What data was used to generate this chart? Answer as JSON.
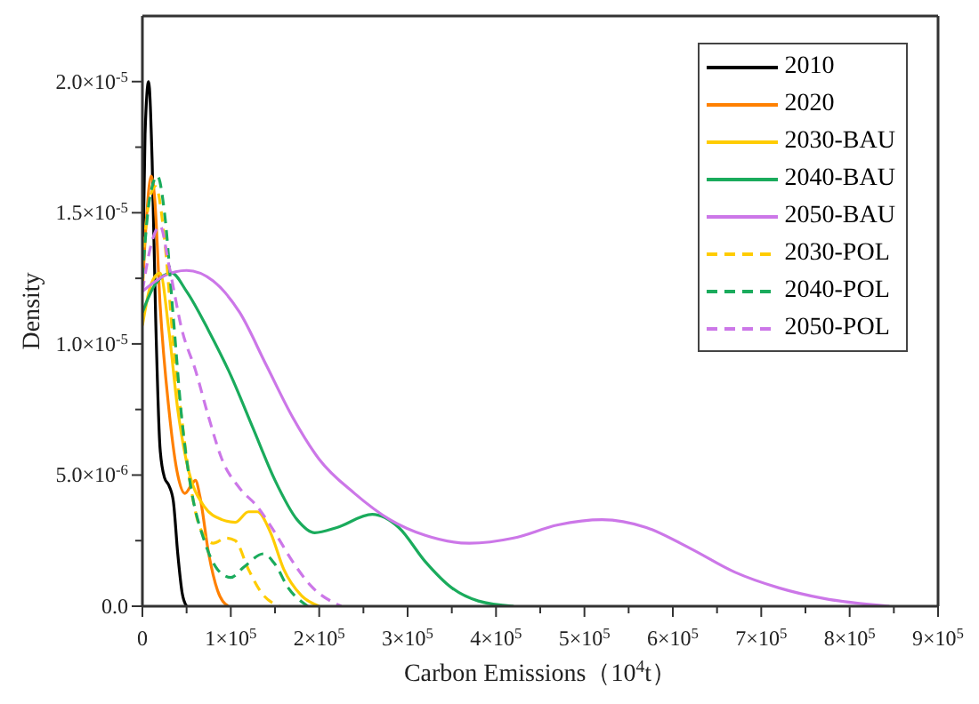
{
  "chart_data": {
    "type": "line",
    "xlabel": "Carbon Emissions（10$^{4}$t）",
    "ylabel": "Density",
    "legend": "top right",
    "marker": "none",
    "xlim": [
      0,
      900000
    ],
    "ylim": [
      0,
      2.25e-05
    ],
    "xticks": [
      0,
      {
        "value": 50000,
        "label": null
      },
      {
        "value": 100000,
        "label": "1×10$^{5}$"
      },
      {
        "value": 150000,
        "label": null
      },
      {
        "value": 200000,
        "label": "2×10$^{5}$"
      },
      {
        "value": 250000,
        "label": null
      },
      {
        "value": 300000,
        "label": "3×10$^{5}$"
      },
      {
        "value": 350000,
        "label": null
      },
      {
        "value": 400000,
        "label": "4×10$^{5}$"
      },
      {
        "value": 450000,
        "label": null
      },
      {
        "value": 500000,
        "label": "5×10$^{5}$"
      },
      {
        "value": 550000,
        "label": null
      },
      {
        "value": 600000,
        "label": "6×10$^{5}$"
      },
      {
        "value": 650000,
        "label": null
      },
      {
        "value": 700000,
        "label": "7×10$^{5}$"
      },
      {
        "value": 750000,
        "label": null
      },
      {
        "value": 800000,
        "label": "8×10$^{5}$"
      },
      {
        "value": 850000,
        "label": null
      },
      {
        "value": 900000,
        "label": "9×10$^{5}$"
      }
    ],
    "yticks": [
      {
        "value": 0,
        "label": "0.0"
      },
      {
        "value": 2.5e-06,
        "label": null
      },
      {
        "value": 5e-06,
        "label": "5.0×10$^{-6}$"
      },
      {
        "value": 7.5e-06,
        "label": null
      },
      {
        "value": 1e-05,
        "label": "1.0×10$^{-5}$"
      },
      {
        "value": 1.25e-05,
        "label": null
      },
      {
        "value": 1.5e-05,
        "label": "1.5×10$^{-5}$"
      },
      {
        "value": 1.75e-05,
        "label": null
      },
      {
        "value": 2e-05,
        "label": "2.0×10$^{-5}$"
      }
    ],
    "series": [
      {
        "name": "2010",
        "color": "#000000",
        "line_style": "solid",
        "x": [
          0,
          3000,
          7000,
          11000,
          15000,
          20000,
          25000,
          30000,
          35000,
          40000,
          45000,
          50000
        ],
        "values": [
          1.2e-05,
          1.8e-05,
          2e-05,
          1.7e-05,
          1.1e-05,
          6e-06,
          4.9e-06,
          4.6e-06,
          4e-06,
          2e-06,
          5e-07,
          0
        ]
      },
      {
        "name": "2020",
        "color": "#ff8000",
        "line_style": "solid",
        "x": [
          0,
          5000,
          10000,
          14000,
          20000,
          30000,
          40000,
          48000,
          55000,
          60000,
          65000,
          75000,
          85000,
          97000
        ],
        "values": [
          1.2e-05,
          1.5e-05,
          1.64e-05,
          1.55e-05,
          1.15e-05,
          7.5e-06,
          5e-06,
          4.3e-06,
          4.6e-06,
          4.8e-06,
          4.2e-06,
          2e-06,
          6e-07,
          0
        ]
      },
      {
        "name": "2030-BAU",
        "color": "#ffcc00",
        "line_style": "solid",
        "x": [
          0,
          10000,
          20000,
          30000,
          40000,
          50000,
          70000,
          90000,
          105000,
          120000,
          130000,
          145000,
          160000,
          180000,
          200000
        ],
        "values": [
          1.07e-05,
          1.23e-05,
          1.27e-05,
          1.05e-05,
          7.5e-06,
          5.5e-06,
          3.8e-06,
          3.3e-06,
          3.2e-06,
          3.6e-06,
          3.6e-06,
          2.8e-06,
          1.4e-06,
          4e-07,
          0
        ]
      },
      {
        "name": "2040-BAU",
        "color": "#1aab5c",
        "line_style": "solid",
        "x": [
          0,
          15000,
          33000,
          50000,
          75000,
          100000,
          125000,
          150000,
          175000,
          195000,
          220000,
          260000,
          290000,
          320000,
          350000,
          380000,
          420000
        ],
        "values": [
          1.12e-05,
          1.23e-05,
          1.27e-05,
          1.2e-05,
          1.05e-05,
          8.8e-06,
          6.8e-06,
          4.8e-06,
          3.3e-06,
          2.8e-06,
          3e-06,
          3.5e-06,
          3e-06,
          1.7e-06,
          7e-07,
          2e-07,
          0
        ]
      },
      {
        "name": "2050-BAU",
        "color": "#cc77e8",
        "line_style": "solid",
        "x": [
          0,
          25000,
          50000,
          80000,
          110000,
          140000,
          170000,
          200000,
          240000,
          280000,
          320000,
          370000,
          420000,
          470000,
          520000,
          570000,
          620000,
          670000,
          720000,
          770000,
          845000
        ],
        "values": [
          1.2e-05,
          1.26e-05,
          1.28e-05,
          1.24e-05,
          1.12e-05,
          9.2e-06,
          7.2e-06,
          5.6e-06,
          4.3e-06,
          3.3e-06,
          2.7e-06,
          2.4e-06,
          2.6e-06,
          3.1e-06,
          3.3e-06,
          3e-06,
          2.2e-06,
          1.3e-06,
          7e-07,
          3e-07,
          0
        ]
      },
      {
        "name": "2030-POL",
        "color": "#ffcc00",
        "line_style": "dashed",
        "x": [
          0,
          8000,
          15000,
          25000,
          35000,
          45000,
          55000,
          65000,
          80000,
          95000,
          105000,
          120000,
          135000,
          155000
        ],
        "values": [
          1.3e-05,
          1.55e-05,
          1.6e-05,
          1.4e-05,
          1e-05,
          7e-06,
          4.5e-06,
          3e-06,
          2.4e-06,
          2.6e-06,
          2.5e-06,
          1.4e-06,
          5e-07,
          0
        ]
      },
      {
        "name": "2040-POL",
        "color": "#1aab5c",
        "line_style": "dashed",
        "x": [
          0,
          8000,
          17000,
          25000,
          35000,
          45000,
          55000,
          70000,
          85000,
          100000,
          115000,
          137000,
          150000,
          165000,
          187000
        ],
        "values": [
          1.25e-05,
          1.55e-05,
          1.64e-05,
          1.5e-05,
          1.1e-05,
          7e-06,
          4.5e-06,
          2.5e-06,
          1.4e-06,
          1.1e-06,
          1.5e-06,
          2e-06,
          1.6e-06,
          7e-07,
          0
        ]
      },
      {
        "name": "2050-POL",
        "color": "#cc77e8",
        "line_style": "dashed",
        "x": [
          0,
          10000,
          20000,
          30000,
          45000,
          60000,
          75000,
          90000,
          110000,
          130000,
          150000,
          170000,
          190000,
          225000
        ],
        "values": [
          1.2e-05,
          1.38e-05,
          1.45e-05,
          1.3e-05,
          1.05e-05,
          9e-06,
          7.2e-06,
          5.6e-06,
          4.5e-06,
          3.8e-06,
          2.8e-06,
          1.7e-06,
          8e-07,
          0
        ]
      }
    ]
  }
}
